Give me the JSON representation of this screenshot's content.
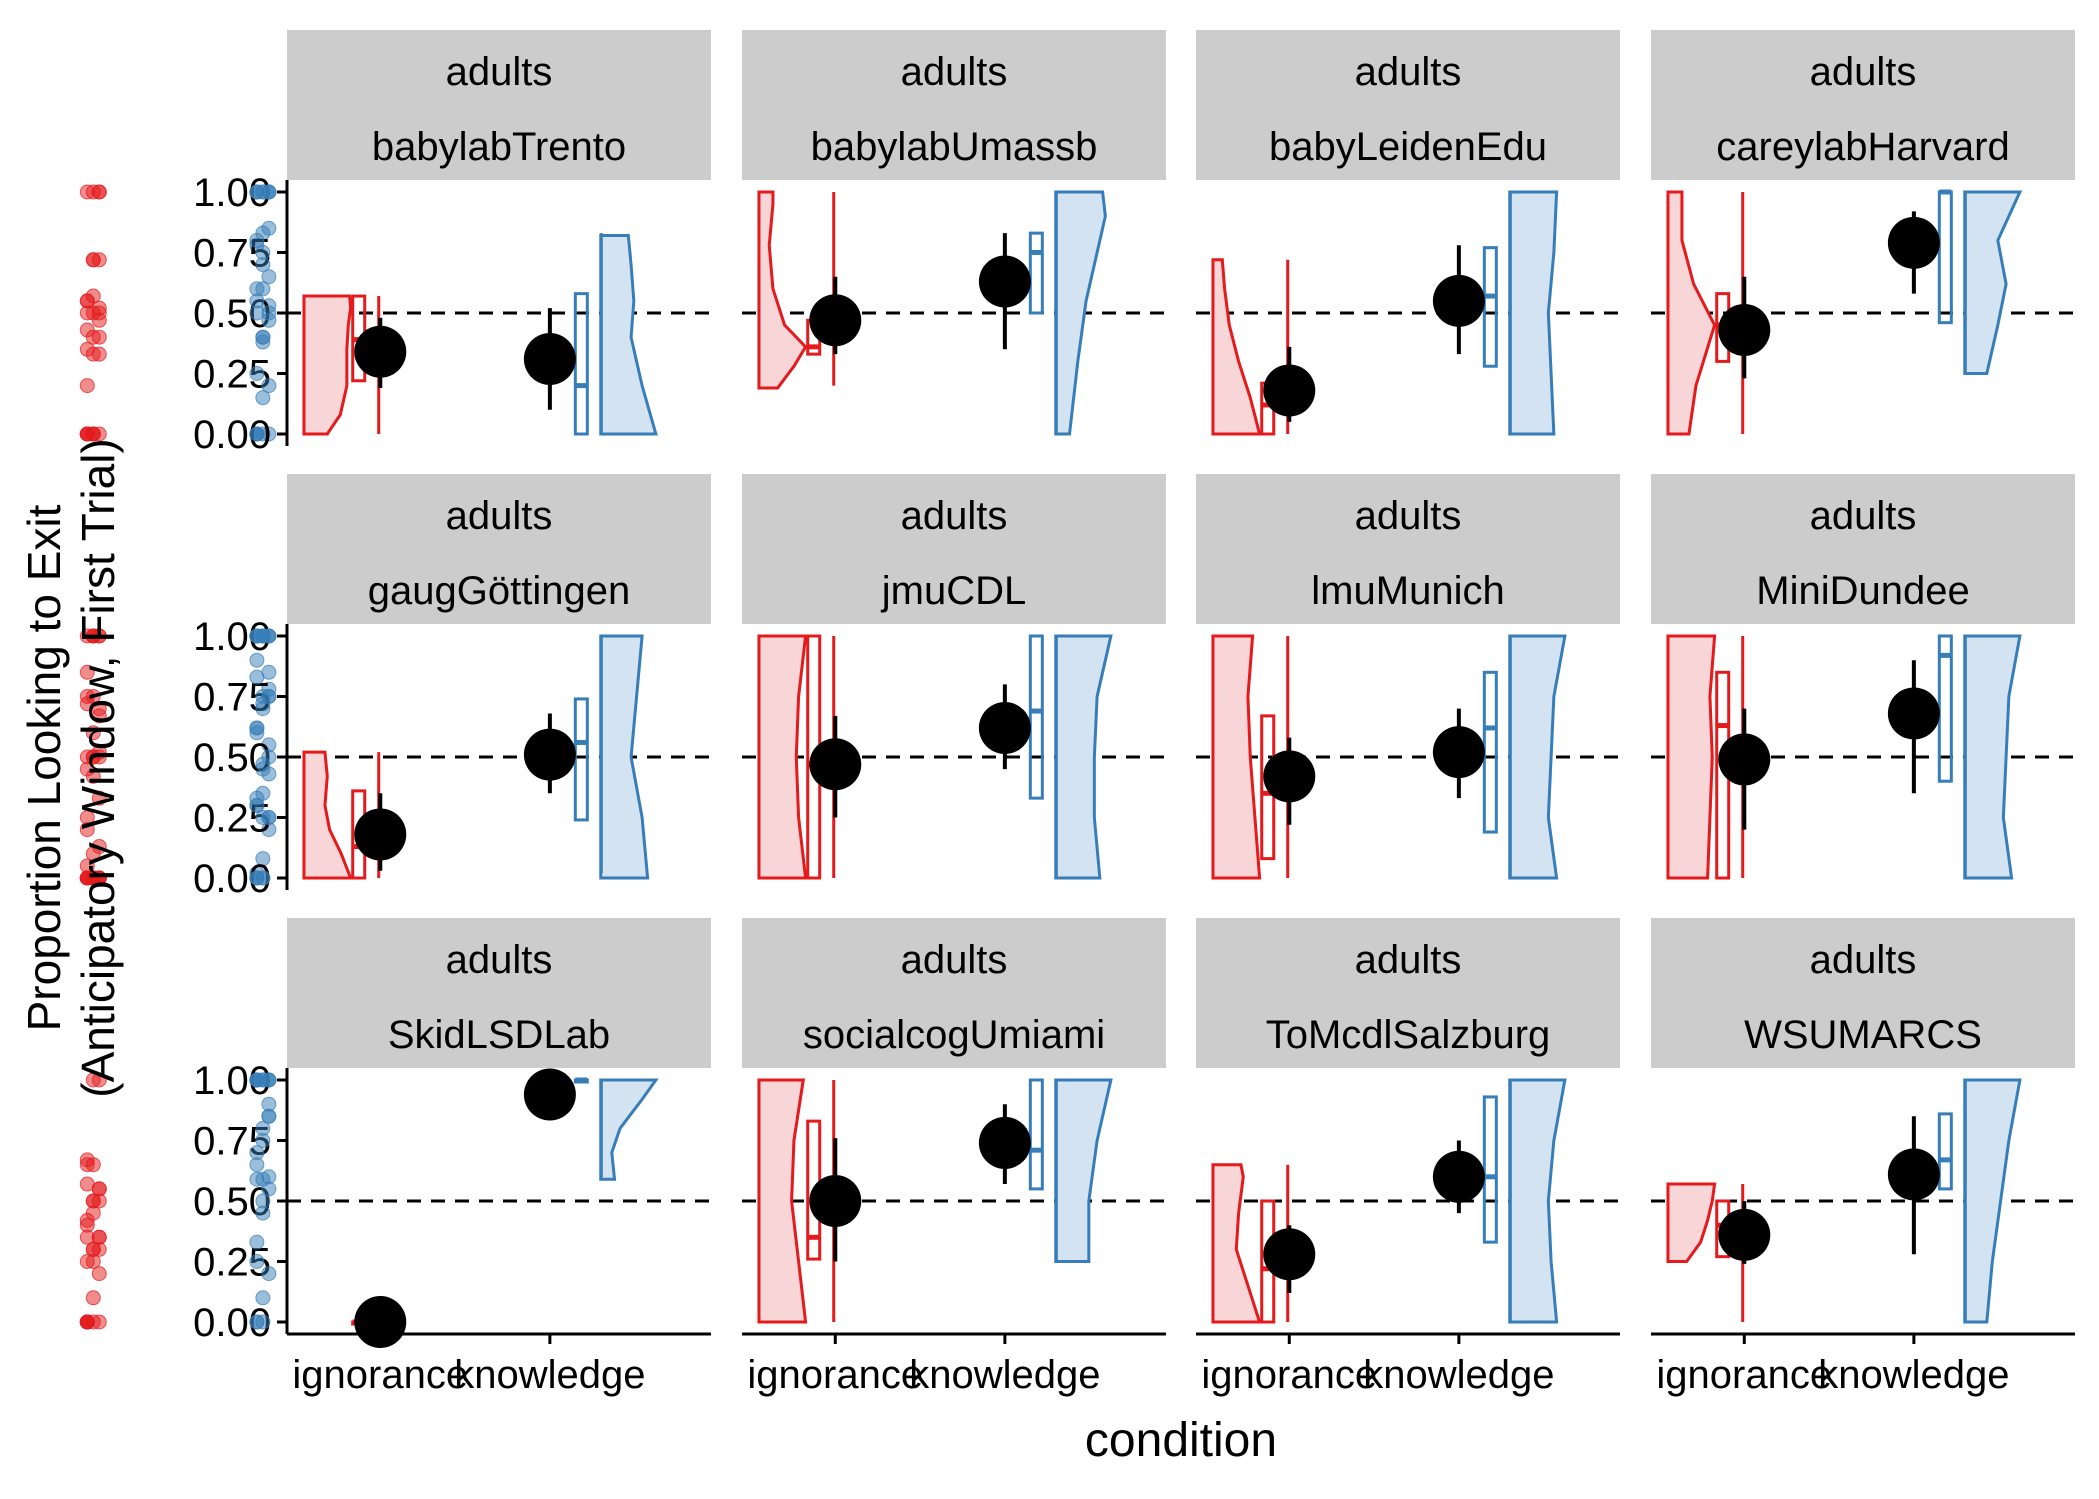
{
  "chart_data": {
    "type": "faceted raincloud plot",
    "ylabel_lines": [
      "Proportion Looking to Exit",
      "(Anticipatory Window, First Trial)"
    ],
    "xlabel": "condition",
    "categories": [
      "ignorance",
      "knowledge"
    ],
    "yticks": [
      "0.00",
      "0.25",
      "0.50",
      "0.75",
      "1.00"
    ],
    "ylim": [
      0,
      1
    ],
    "reference_line": 0.5,
    "colors": {
      "ignorance": "#e41a1c",
      "ignorance_fill": "#f8d5d6",
      "knowledge": "#377eb8",
      "knowledge_fill": "#d3e3f1",
      "mean": "#000000",
      "strip": "#cccccc"
    },
    "facets": [
      {
        "group": "adults",
        "lab": "babylabTrento",
        "ignorance": {
          "mean": 0.34,
          "ci": [
            0.19,
            0.48
          ],
          "points": [
            0,
            0,
            0.4,
            0.43,
            0.5,
            0.52,
            0.55,
            0.57
          ],
          "box": [
            0.22,
            0.39,
            0.57
          ],
          "density": [
            [
              0,
              0.5
            ],
            [
              0.08,
              0.78
            ],
            [
              0.2,
              0.92
            ],
            [
              0.35,
              0.92
            ],
            [
              0.45,
              0.95
            ],
            [
              0.52,
              1
            ],
            [
              0.57,
              0.98
            ]
          ]
        },
        "knowledge": {
          "mean": 0.31,
          "ci": [
            0.1,
            0.52
          ],
          "points": [
            0,
            0,
            0,
            0,
            0.4,
            0.53,
            0.78,
            0.83
          ],
          "box": [
            0,
            0.2,
            0.58
          ],
          "density": [
            [
              0,
              1
            ],
            [
              0.2,
              0.75
            ],
            [
              0.4,
              0.55
            ],
            [
              0.55,
              0.6
            ],
            [
              0.7,
              0.55
            ],
            [
              0.82,
              0.5
            ]
          ]
        }
      },
      {
        "group": "adults",
        "lab": "babylabUmassb",
        "ignorance": {
          "mean": 0.47,
          "ci": [
            0.33,
            0.65
          ],
          "points": [
            0.2,
            0.33,
            0.33,
            0.35,
            0.4,
            0.47,
            0.5,
            0.72,
            1,
            1
          ],
          "box": [
            0.33,
            0.36,
            0.47
          ],
          "density": [
            [
              0.19,
              0.4
            ],
            [
              0.28,
              0.75
            ],
            [
              0.36,
              1
            ],
            [
              0.45,
              0.55
            ],
            [
              0.6,
              0.3
            ],
            [
              0.78,
              0.22
            ],
            [
              0.95,
              0.3
            ],
            [
              1,
              0.3
            ]
          ]
        },
        "knowledge": {
          "mean": 0.63,
          "ci": [
            0.35,
            0.83
          ],
          "points": [
            0,
            0.4,
            0.5,
            0.55,
            0.7,
            0.85,
            1
          ],
          "box": [
            0.5,
            0.75,
            0.83
          ],
          "density": [
            [
              0,
              0.25
            ],
            [
              0.3,
              0.4
            ],
            [
              0.55,
              0.55
            ],
            [
              0.75,
              0.75
            ],
            [
              0.9,
              0.9
            ],
            [
              1,
              0.85
            ]
          ]
        }
      },
      {
        "group": "adults",
        "lab": "babyLeidenEdu",
        "ignorance": {
          "mean": 0.18,
          "ci": [
            0.05,
            0.36
          ],
          "points": [
            0,
            0,
            0,
            0,
            0.72,
            0.72
          ],
          "box": [
            0,
            0.12,
            0.21
          ],
          "density": [
            [
              0,
              1
            ],
            [
              0.15,
              0.8
            ],
            [
              0.3,
              0.55
            ],
            [
              0.45,
              0.35
            ],
            [
              0.6,
              0.25
            ],
            [
              0.72,
              0.2
            ]
          ]
        },
        "knowledge": {
          "mean": 0.55,
          "ci": [
            0.33,
            0.78
          ],
          "points": [
            0,
            0.15,
            0.2,
            0.5,
            0.6,
            0.65,
            0.8,
            1,
            1
          ],
          "box": [
            0.28,
            0.57,
            0.77
          ],
          "density": [
            [
              0,
              0.8
            ],
            [
              0.25,
              0.75
            ],
            [
              0.5,
              0.7
            ],
            [
              0.75,
              0.8
            ],
            [
              1,
              0.85
            ]
          ]
        }
      },
      {
        "group": "adults",
        "lab": "careylabHarvard",
        "ignorance": {
          "mean": 0.43,
          "ci": [
            0.23,
            0.65
          ],
          "points": [
            0,
            0,
            0.5,
            0.55,
            1,
            1
          ],
          "box": [
            0.3,
            0.45,
            0.58
          ],
          "density": [
            [
              0,
              0.45
            ],
            [
              0.2,
              0.6
            ],
            [
              0.45,
              1
            ],
            [
              0.62,
              0.55
            ],
            [
              0.8,
              0.3
            ],
            [
              1,
              0.3
            ]
          ]
        },
        "knowledge": {
          "mean": 0.79,
          "ci": [
            0.58,
            0.92
          ],
          "points": [
            0.25,
            0.38,
            0.47,
            0.6,
            0.75,
            1,
            1,
            1,
            1,
            1
          ],
          "box": [
            0.46,
            1,
            1
          ],
          "density": [
            [
              0.25,
              0.4
            ],
            [
              0.45,
              0.6
            ],
            [
              0.62,
              0.75
            ],
            [
              0.8,
              0.6
            ],
            [
              1,
              1
            ]
          ]
        }
      },
      {
        "group": "adults",
        "lab": "gaugGöttingen",
        "ignorance": {
          "mean": 0.18,
          "ci": [
            0.03,
            0.35
          ],
          "points": [
            0,
            0,
            0,
            0,
            0,
            0,
            0.45,
            0.5,
            0.52
          ],
          "box": [
            0,
            0.13,
            0.36
          ],
          "density": [
            [
              0,
              1
            ],
            [
              0.1,
              0.8
            ],
            [
              0.2,
              0.55
            ],
            [
              0.3,
              0.45
            ],
            [
              0.42,
              0.5
            ],
            [
              0.52,
              0.45
            ]
          ]
        },
        "knowledge": {
          "mean": 0.51,
          "ci": [
            0.35,
            0.68
          ],
          "points": [
            0.02,
            0.08,
            0.2,
            0.3,
            0.45,
            0.55,
            0.62,
            0.72,
            0.78,
            1,
            1
          ],
          "box": [
            0.24,
            0.56,
            0.74
          ],
          "density": [
            [
              0,
              0.85
            ],
            [
              0.25,
              0.75
            ],
            [
              0.5,
              0.55
            ],
            [
              0.75,
              0.65
            ],
            [
              1,
              0.75
            ]
          ]
        }
      },
      {
        "group": "adults",
        "lab": "jmuCDL",
        "ignorance": {
          "mean": 0.47,
          "ci": [
            0.25,
            0.67
          ],
          "points": [
            0,
            0,
            0,
            0.2,
            0.5,
            0.67,
            0.72,
            0.75,
            1,
            1,
            1
          ],
          "box": [
            0,
            0.47,
            1
          ],
          "density": [
            [
              0,
              1
            ],
            [
              0.25,
              0.85
            ],
            [
              0.5,
              0.8
            ],
            [
              0.75,
              0.85
            ],
            [
              1,
              1
            ]
          ]
        },
        "knowledge": {
          "mean": 0.62,
          "ci": [
            0.45,
            0.8
          ],
          "points": [
            0,
            0,
            0.25,
            0.3,
            0.35,
            0.43,
            0.6,
            0.7,
            0.75,
            1,
            1,
            1,
            1
          ],
          "box": [
            0.33,
            0.69,
            1
          ],
          "density": [
            [
              0,
              0.8
            ],
            [
              0.25,
              0.7
            ],
            [
              0.5,
              0.7
            ],
            [
              0.75,
              0.75
            ],
            [
              1,
              1
            ]
          ]
        }
      },
      {
        "group": "adults",
        "lab": "lmuMunich",
        "ignorance": {
          "mean": 0.42,
          "ci": [
            0.22,
            0.58
          ],
          "points": [
            0,
            0,
            0,
            0.05,
            0.1,
            0.13,
            0.25,
            0.42,
            0.5,
            0.75,
            1,
            1
          ],
          "box": [
            0.08,
            0.35,
            0.67
          ],
          "density": [
            [
              0,
              1
            ],
            [
              0.25,
              0.9
            ],
            [
              0.5,
              0.8
            ],
            [
              0.75,
              0.75
            ],
            [
              1,
              0.85
            ]
          ]
        },
        "knowledge": {
          "mean": 0.52,
          "ci": [
            0.33,
            0.7
          ],
          "points": [
            0,
            0,
            0.25,
            0.33,
            0.47,
            0.5,
            0.62,
            0.75,
            0.85,
            0.9,
            1,
            1
          ],
          "box": [
            0.19,
            0.62,
            0.85
          ],
          "density": [
            [
              0,
              0.85
            ],
            [
              0.25,
              0.7
            ],
            [
              0.5,
              0.75
            ],
            [
              0.75,
              0.8
            ],
            [
              1,
              1
            ]
          ]
        }
      },
      {
        "group": "adults",
        "lab": "MiniDundee",
        "ignorance": {
          "mean": 0.49,
          "ci": [
            0.2,
            0.7
          ],
          "points": [
            0,
            0,
            0.33,
            0.5,
            0.6,
            0.7,
            0.85,
            1
          ],
          "box": [
            0,
            0.63,
            0.85
          ],
          "density": [
            [
              0,
              0.85
            ],
            [
              0.25,
              0.9
            ],
            [
              0.5,
              0.95
            ],
            [
              0.75,
              0.9
            ],
            [
              1,
              1
            ]
          ]
        },
        "knowledge": {
          "mean": 0.68,
          "ci": [
            0.35,
            0.9
          ],
          "points": [
            0,
            0.25,
            0.75,
            0.83,
            1,
            1,
            1
          ],
          "box": [
            0.4,
            0.92,
            1
          ],
          "density": [
            [
              0,
              0.85
            ],
            [
              0.25,
              0.7
            ],
            [
              0.5,
              0.75
            ],
            [
              0.75,
              0.8
            ],
            [
              1,
              1
            ]
          ]
        }
      },
      {
        "group": "adults",
        "lab": "SkidLSDLab",
        "ignorance": {
          "mean": 0.0,
          "ci": [
            0.0,
            0.0
          ],
          "points": [
            0
          ],
          "box": [
            0,
            0,
            0
          ],
          "density": []
        },
        "knowledge": {
          "mean": 0.94,
          "ci": [
            0.85,
            1
          ],
          "points": [
            0.59,
            0.59,
            1,
            1
          ],
          "box": [
            1,
            1,
            1
          ],
          "density": [
            [
              0.59,
              0.25
            ],
            [
              0.7,
              0.2
            ],
            [
              0.8,
              0.35
            ],
            [
              0.92,
              0.75
            ],
            [
              1,
              1
            ]
          ]
        }
      },
      {
        "group": "adults",
        "lab": "socialcogUmiami",
        "ignorance": {
          "mean": 0.5,
          "ci": [
            0.25,
            0.76
          ],
          "points": [
            0,
            0.25,
            0.3,
            0.35,
            0.5,
            0.55,
            0.67,
            1,
            1
          ],
          "box": [
            0.26,
            0.35,
            0.83
          ],
          "density": [
            [
              0,
              1
            ],
            [
              0.25,
              0.85
            ],
            [
              0.5,
              0.7
            ],
            [
              0.75,
              0.75
            ],
            [
              1,
              0.95
            ]
          ]
        },
        "knowledge": {
          "mean": 0.74,
          "ci": [
            0.57,
            0.9
          ],
          "points": [
            0.25,
            0.45,
            0.55,
            0.65,
            0.75,
            0.85,
            1,
            1,
            1,
            1
          ],
          "box": [
            0.55,
            0.71,
            1
          ],
          "density": [
            [
              0.25,
              0.6
            ],
            [
              0.5,
              0.6
            ],
            [
              0.75,
              0.75
            ],
            [
              1,
              1
            ]
          ]
        }
      },
      {
        "group": "adults",
        "lab": "ToMcdlSalzburg",
        "ignorance": {
          "mean": 0.28,
          "ci": [
            0.12,
            0.4
          ],
          "points": [
            0,
            0,
            0,
            0,
            0.1,
            0.2,
            0.25,
            0.3,
            0.35,
            0.42,
            0.5,
            0.55,
            0.65,
            0.65
          ],
          "box": [
            0,
            0.22,
            0.5
          ],
          "density": [
            [
              0,
              1
            ],
            [
              0.15,
              0.75
            ],
            [
              0.3,
              0.5
            ],
            [
              0.45,
              0.55
            ],
            [
              0.6,
              0.65
            ],
            [
              0.65,
              0.6
            ]
          ]
        },
        "knowledge": {
          "mean": 0.6,
          "ci": [
            0.45,
            0.75
          ],
          "points": [
            0,
            0.1,
            0.2,
            0.33,
            0.5,
            0.6,
            0.7,
            0.8,
            0.9,
            1,
            1,
            1
          ],
          "box": [
            0.33,
            0.6,
            0.93
          ],
          "density": [
            [
              0,
              0.85
            ],
            [
              0.25,
              0.75
            ],
            [
              0.5,
              0.7
            ],
            [
              0.75,
              0.8
            ],
            [
              1,
              1
            ]
          ]
        }
      },
      {
        "group": "adults",
        "lab": "WSUMARCS",
        "ignorance": {
          "mean": 0.36,
          "ci": [
            0.24,
            0.5
          ],
          "points": [
            0,
            0.3,
            0.35,
            0.4,
            0.45,
            0.5,
            0.57
          ],
          "box": [
            0.27,
            0.4,
            0.5
          ],
          "density": [
            [
              0.25,
              0.4
            ],
            [
              0.33,
              0.7
            ],
            [
              0.42,
              0.85
            ],
            [
              0.5,
              0.95
            ],
            [
              0.57,
              1
            ]
          ]
        },
        "knowledge": {
          "mean": 0.61,
          "ci": [
            0.28,
            0.85
          ],
          "points": [
            0,
            0,
            0.85,
            1
          ],
          "box": [
            0.55,
            0.67,
            0.86
          ],
          "density": [
            [
              0,
              0.4
            ],
            [
              0.25,
              0.5
            ],
            [
              0.5,
              0.65
            ],
            [
              0.75,
              0.8
            ],
            [
              1,
              1
            ]
          ]
        }
      }
    ]
  }
}
